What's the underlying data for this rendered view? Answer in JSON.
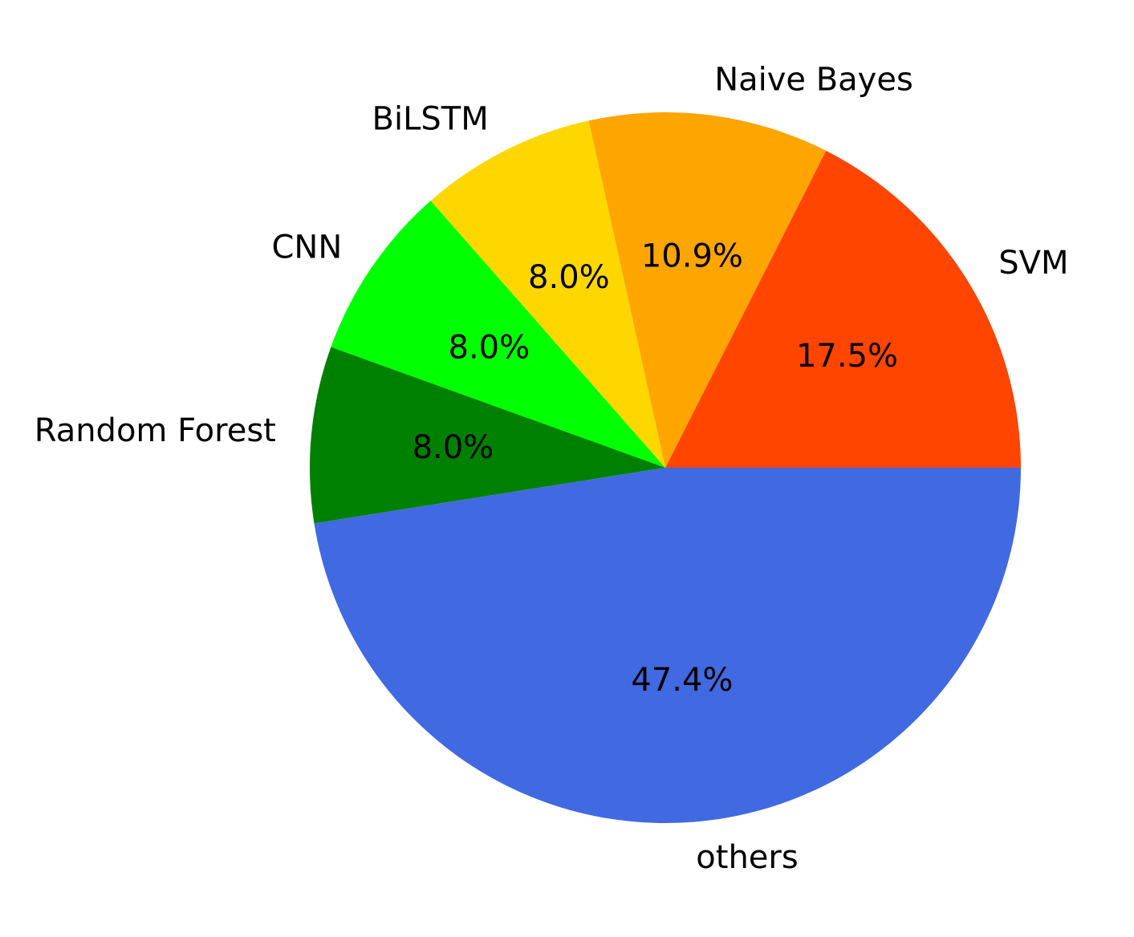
{
  "chart_data": {
    "type": "pie",
    "title": "",
    "start_angle": "0 degrees (3 o'clock), counter-clockwise",
    "slices": [
      {
        "label": "SVM",
        "value": 17.5,
        "pct_label": "17.5%",
        "color": "#FF4500"
      },
      {
        "label": "Naive Bayes",
        "value": 10.9,
        "pct_label": "10.9%",
        "color": "#FFA500"
      },
      {
        "label": "BiLSTM",
        "value": 8.0,
        "pct_label": "8.0%",
        "color": "#FFD700"
      },
      {
        "label": "CNN",
        "value": 8.0,
        "pct_label": "8.0%",
        "color": "#00FF00"
      },
      {
        "label": "Random Forest",
        "value": 8.0,
        "pct_label": "8.0%",
        "color": "#008000"
      },
      {
        "label": "others",
        "value": 47.4,
        "pct_label": "47.4%",
        "color": "#4169E1"
      }
    ]
  }
}
